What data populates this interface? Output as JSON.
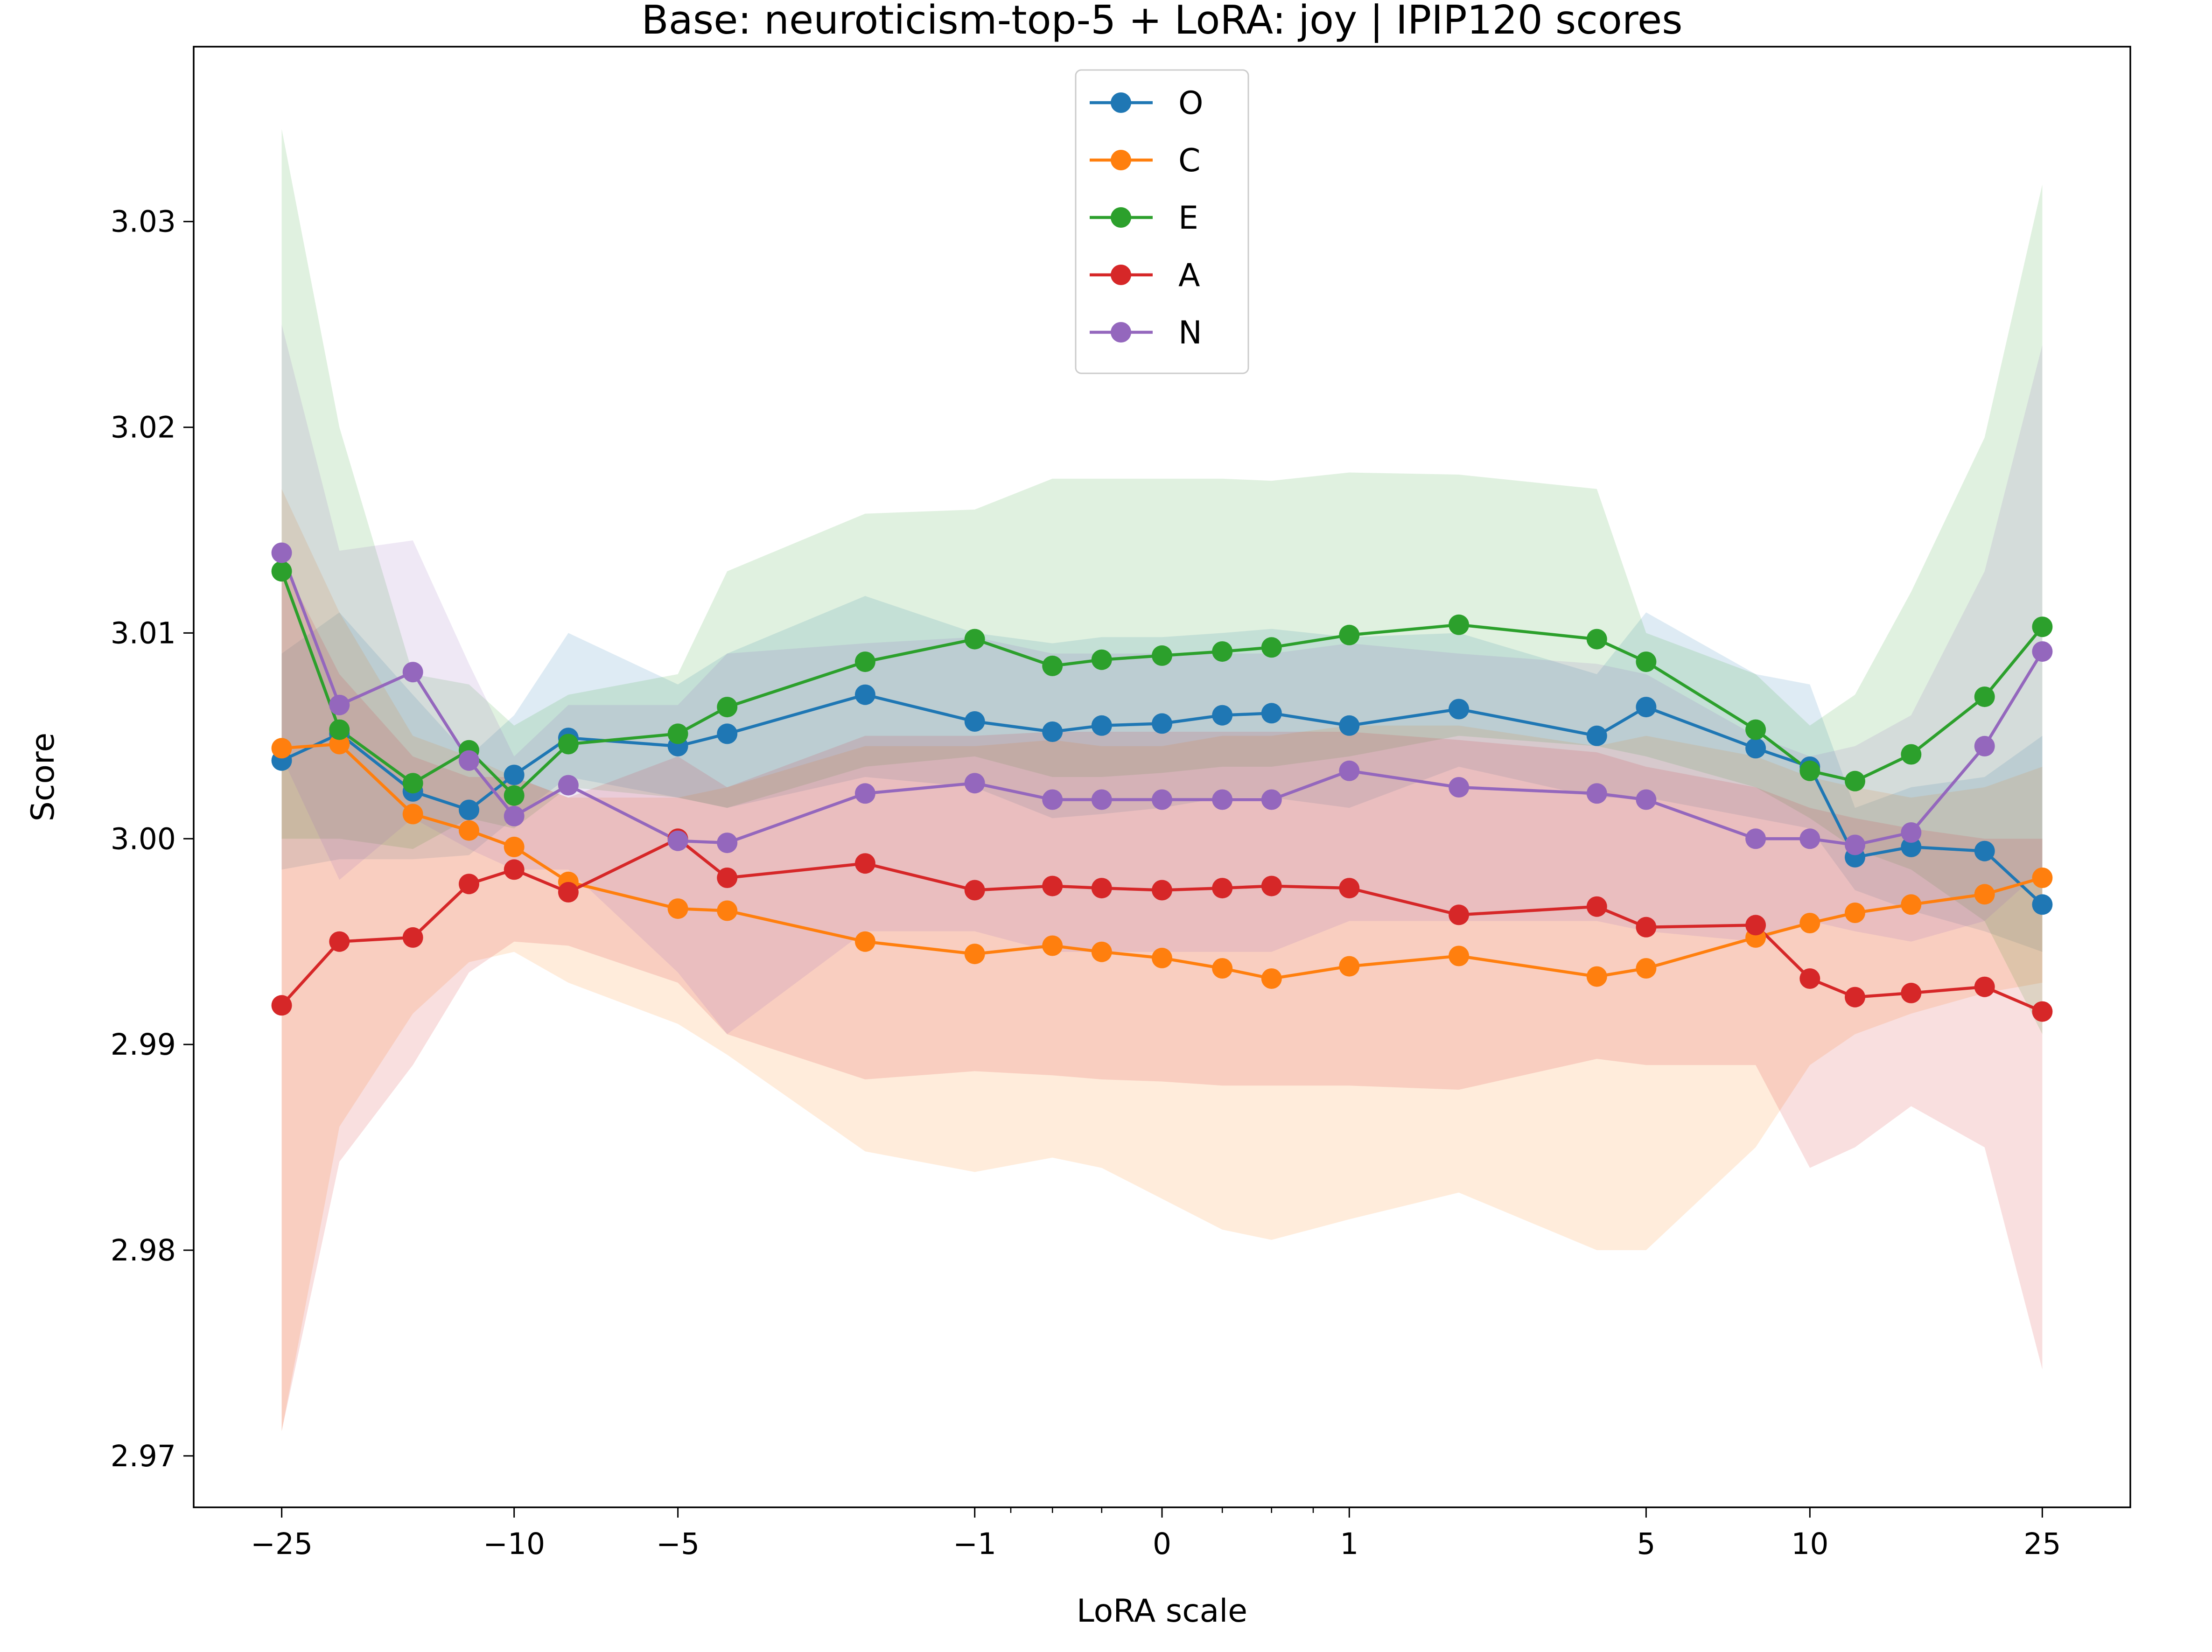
{
  "chart_data": {
    "type": "line",
    "title": "Base: neuroticism-top-5 + LoRA: joy | IPIP120 scores",
    "xlabel": "LoRA scale",
    "ylabel": "Score",
    "x_scale": "symlog",
    "x_ticks": [
      -25,
      -10,
      -5,
      -1,
      0,
      1,
      5,
      10,
      25
    ],
    "x_tick_labels": [
      "−25",
      "−10",
      "−5",
      "−1",
      "0",
      "1",
      "5",
      "10",
      "25"
    ],
    "ylim": [
      2.9675,
      3.0385
    ],
    "y_ticks": [
      2.97,
      2.98,
      2.99,
      3.0,
      3.01,
      3.02,
      3.03
    ],
    "y_tick_labels": [
      "2.97",
      "2.98",
      "2.99",
      "3.00",
      "3.01",
      "3.02",
      "3.03"
    ],
    "legend_position": "upper-center",
    "grid": false,
    "x": [
      -25,
      -20,
      -15,
      -12,
      -10,
      -8,
      -5,
      -4,
      -2,
      -1,
      -0.5,
      -0.25,
      0,
      0.25,
      0.5,
      1,
      2,
      4,
      5,
      8,
      10,
      12,
      15,
      20,
      25
    ],
    "series": [
      {
        "name": "O",
        "color": "#1f77b4",
        "values": [
          3.0038,
          3.0051,
          3.0023,
          3.0014,
          3.0031,
          3.0049,
          3.0045,
          3.0051,
          3.007,
          3.0057,
          3.0052,
          3.0055,
          3.0056,
          3.006,
          3.0061,
          3.0055,
          3.0063,
          3.005,
          3.0064,
          3.0044,
          3.0035,
          2.9991,
          2.9996,
          2.9994,
          2.9968
        ],
        "lower": [
          2.9985,
          2.999,
          2.999,
          2.9992,
          3.001,
          3.003,
          3.002,
          3.0015,
          3.003,
          3.0025,
          3.001,
          3.0012,
          3.0015,
          3.002,
          3.002,
          3.0015,
          3.0035,
          3.002,
          3.002,
          3.001,
          3.0005,
          2.9975,
          2.9965,
          2.9955,
          2.9945
        ],
        "upper": [
          3.009,
          3.011,
          3.007,
          3.004,
          3.006,
          3.01,
          3.0075,
          3.009,
          3.0118,
          3.01,
          3.0095,
          3.0098,
          3.0098,
          3.01,
          3.0102,
          3.0098,
          3.01,
          3.008,
          3.011,
          3.008,
          3.0075,
          3.0015,
          3.0025,
          3.003,
          3.005
        ]
      },
      {
        "name": "C",
        "color": "#ff7f0e",
        "values": [
          3.0044,
          3.0046,
          3.0012,
          3.0004,
          2.9996,
          2.9979,
          2.9966,
          2.9965,
          2.995,
          2.9944,
          2.9948,
          2.9945,
          2.9942,
          2.9937,
          2.9932,
          2.9938,
          2.9943,
          2.9933,
          2.9937,
          2.9952,
          2.9959,
          2.9964,
          2.9968,
          2.9973,
          2.9981
        ],
        "lower": [
          2.9712,
          2.986,
          2.9915,
          2.994,
          2.9945,
          2.993,
          2.991,
          2.9895,
          2.9848,
          2.9838,
          2.9845,
          2.984,
          2.9825,
          2.981,
          2.9805,
          2.9815,
          2.9828,
          2.98,
          2.98,
          2.985,
          2.989,
          2.9905,
          2.9915,
          2.9925,
          2.993
        ],
        "upper": [
          3.017,
          3.011,
          3.005,
          3.004,
          3.003,
          3.002,
          3.002,
          3.0025,
          3.0045,
          3.0045,
          3.0048,
          3.0045,
          3.0045,
          3.005,
          3.005,
          3.0055,
          3.0055,
          3.0045,
          3.005,
          3.004,
          3.003,
          3.0025,
          3.002,
          3.0025,
          3.0035
        ]
      },
      {
        "name": "E",
        "color": "#2ca02c",
        "values": [
          3.013,
          3.0053,
          3.0027,
          3.0043,
          3.0021,
          3.0046,
          3.0051,
          3.0064,
          3.0086,
          3.0097,
          3.0084,
          3.0087,
          3.0089,
          3.0091,
          3.0093,
          3.0099,
          3.0104,
          3.0097,
          3.0086,
          3.0053,
          3.0033,
          3.0028,
          3.0041,
          3.0069,
          3.0103
        ],
        "lower": [
          3.0,
          3.0,
          2.9995,
          3.001,
          3.0005,
          3.0025,
          3.002,
          3.0015,
          3.0035,
          3.004,
          3.003,
          3.003,
          3.0032,
          3.0035,
          3.0035,
          3.004,
          3.005,
          3.0045,
          3.004,
          3.0025,
          3.001,
          2.9995,
          2.9985,
          2.996,
          2.9905
        ],
        "upper": [
          3.0345,
          3.02,
          3.008,
          3.0075,
          3.0055,
          3.007,
          3.008,
          3.013,
          3.0158,
          3.016,
          3.0175,
          3.0175,
          3.0175,
          3.0175,
          3.0174,
          3.0178,
          3.0177,
          3.017,
          3.01,
          3.008,
          3.0055,
          3.007,
          3.012,
          3.0195,
          3.0318
        ]
      },
      {
        "name": "A",
        "color": "#d62728",
        "values": [
          2.9919,
          2.995,
          2.9952,
          2.9978,
          2.9985,
          2.9974,
          3.0,
          2.9981,
          2.9988,
          2.9975,
          2.9977,
          2.9976,
          2.9975,
          2.9976,
          2.9977,
          2.9976,
          2.9963,
          2.9967,
          2.9957,
          2.9958,
          2.9932,
          2.9923,
          2.9925,
          2.9928,
          2.9916
        ],
        "lower": [
          2.9712,
          2.9843,
          2.989,
          2.9935,
          2.995,
          2.9948,
          2.993,
          2.9905,
          2.9883,
          2.9887,
          2.9885,
          2.9883,
          2.9882,
          2.988,
          2.988,
          2.988,
          2.9878,
          2.9893,
          2.989,
          2.989,
          2.984,
          2.985,
          2.987,
          2.985,
          2.9742
        ],
        "upper": [
          3.0135,
          3.008,
          3.004,
          3.003,
          3.003,
          3.002,
          3.004,
          3.0025,
          3.005,
          3.005,
          3.0052,
          3.0052,
          3.0052,
          3.0052,
          3.0052,
          3.0052,
          3.0048,
          3.0042,
          3.0035,
          3.0025,
          3.0015,
          3.001,
          3.0005,
          3.0,
          3.0
        ]
      },
      {
        "name": "N",
        "color": "#9467bd",
        "values": [
          3.0139,
          3.0065,
          3.0081,
          3.0038,
          3.0011,
          3.0026,
          2.9999,
          2.9998,
          3.0022,
          3.0027,
          3.0019,
          3.0019,
          3.0019,
          3.0019,
          3.0019,
          3.0033,
          3.0025,
          3.0022,
          3.0019,
          3.0,
          3.0,
          2.9997,
          3.0003,
          3.0045,
          3.0091
        ],
        "lower": [
          3.004,
          2.998,
          3.001,
          2.9995,
          2.9985,
          2.9985,
          2.9935,
          2.9905,
          2.9955,
          2.9955,
          2.9945,
          2.9945,
          2.9945,
          2.9945,
          2.9945,
          2.996,
          2.996,
          2.996,
          2.9955,
          2.995,
          2.996,
          2.9955,
          2.995,
          2.996,
          2.9985
        ],
        "upper": [
          3.025,
          3.014,
          3.0145,
          3.0085,
          3.004,
          3.0065,
          3.0065,
          3.009,
          3.0095,
          3.0098,
          3.009,
          3.009,
          3.009,
          3.009,
          3.009,
          3.0095,
          3.009,
          3.0085,
          3.008,
          3.005,
          3.004,
          3.0045,
          3.006,
          3.013,
          3.024
        ]
      }
    ]
  }
}
